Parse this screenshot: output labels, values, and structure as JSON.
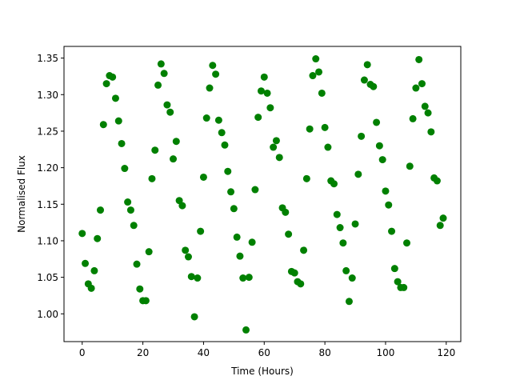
{
  "chart_data": {
    "type": "scatter",
    "xlabel": "Time (Hours)",
    "ylabel": "Normalised Flux",
    "xlim": [
      -6,
      124.8
    ],
    "ylim": [
      0.962,
      1.366
    ],
    "xticks": [
      0,
      20,
      40,
      60,
      80,
      100,
      120
    ],
    "yticks": [
      1.0,
      1.05,
      1.1,
      1.15,
      1.2,
      1.25,
      1.3,
      1.35
    ],
    "xtick_labels": [
      "0",
      "20",
      "40",
      "60",
      "80",
      "100",
      "120"
    ],
    "ytick_labels": [
      "1.00",
      "1.05",
      "1.10",
      "1.15",
      "1.20",
      "1.25",
      "1.30",
      "1.35"
    ],
    "grid": false,
    "marker_color": "#008000",
    "series": [
      {
        "x": [
          0,
          1,
          2,
          3,
          4,
          5,
          6,
          7,
          8,
          9,
          10,
          11,
          12,
          13,
          14,
          15,
          16,
          17,
          18,
          19,
          20,
          21,
          22,
          23,
          24,
          25,
          26,
          27,
          28,
          29,
          30,
          31,
          32,
          33,
          34,
          35,
          36,
          37,
          38,
          39,
          40,
          41,
          42,
          43,
          44,
          45,
          46,
          47,
          48,
          49,
          50,
          51,
          52,
          53,
          54,
          55,
          56,
          57,
          58,
          59,
          60,
          61,
          62,
          63,
          64,
          65,
          66,
          67,
          68,
          69,
          70,
          71,
          72,
          73,
          74,
          75,
          76,
          77,
          78,
          79,
          80,
          81,
          82,
          83,
          84,
          85,
          86,
          87,
          88,
          89,
          90,
          91,
          92,
          93,
          94,
          95,
          96,
          97,
          98,
          99,
          100,
          101,
          102,
          103,
          104,
          105,
          106,
          107,
          108,
          109,
          110,
          111,
          112,
          113,
          114,
          115,
          116,
          117,
          118,
          119
        ],
        "y": [
          1.11,
          1.069,
          1.041,
          1.035,
          1.059,
          1.103,
          1.142,
          1.259,
          1.315,
          1.326,
          1.324,
          1.295,
          1.264,
          1.233,
          1.199,
          1.153,
          1.142,
          1.121,
          1.068,
          1.034,
          1.018,
          1.018,
          1.085,
          1.185,
          1.224,
          1.313,
          1.342,
          1.329,
          1.286,
          1.276,
          1.212,
          1.236,
          1.155,
          1.148,
          1.087,
          1.078,
          1.051,
          0.996,
          1.049,
          1.113,
          1.187,
          1.268,
          1.309,
          1.34,
          1.328,
          1.265,
          1.248,
          1.231,
          1.195,
          1.167,
          1.144,
          1.105,
          1.079,
          1.049,
          0.978,
          1.05,
          1.098,
          1.17,
          1.269,
          1.305,
          1.324,
          1.302,
          1.282,
          1.228,
          1.237,
          1.214,
          1.145,
          1.139,
          1.109,
          1.058,
          1.056,
          1.044,
          1.041,
          1.087,
          1.185,
          1.253,
          1.326,
          1.349,
          1.331,
          1.302,
          1.255,
          1.228,
          1.182,
          1.178,
          1.136,
          1.118,
          1.097,
          1.059,
          1.017,
          1.049,
          1.123,
          1.191,
          1.243,
          1.32,
          1.341,
          1.314,
          1.311,
          1.262,
          1.23,
          1.211,
          1.168,
          1.149,
          1.113,
          1.062,
          1.044,
          1.036,
          1.036,
          1.097,
          1.202,
          1.267,
          1.309,
          1.348,
          1.315,
          1.284,
          1.275,
          1.249,
          1.186,
          1.182,
          1.121,
          1.131
        ]
      }
    ]
  }
}
